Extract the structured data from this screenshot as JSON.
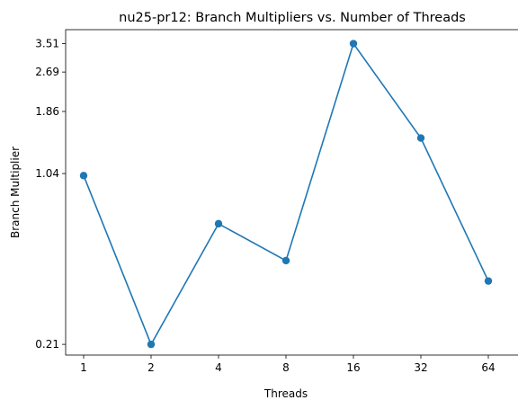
{
  "chart_data": {
    "type": "line",
    "title": "nu25-pr12: Branch Multipliers vs. Number of Threads",
    "xlabel": "Threads",
    "ylabel": "Branch Multiplier",
    "categories": [
      "1",
      "2",
      "4",
      "8",
      "16",
      "32",
      "64"
    ],
    "values": [
      1.02,
      0.21,
      0.65,
      0.46,
      3.51,
      1.45,
      0.38
    ],
    "y_scale": "log",
    "ylim": [
      0.19,
      4.0
    ],
    "y_ticks": [
      0.21,
      1.04,
      1.86,
      2.69,
      3.51
    ],
    "y_tick_labels": [
      "0.21",
      "1.04",
      "1.86",
      "2.69",
      "3.51"
    ],
    "grid": false,
    "legend": "none",
    "series_color": "#1f77b4"
  }
}
